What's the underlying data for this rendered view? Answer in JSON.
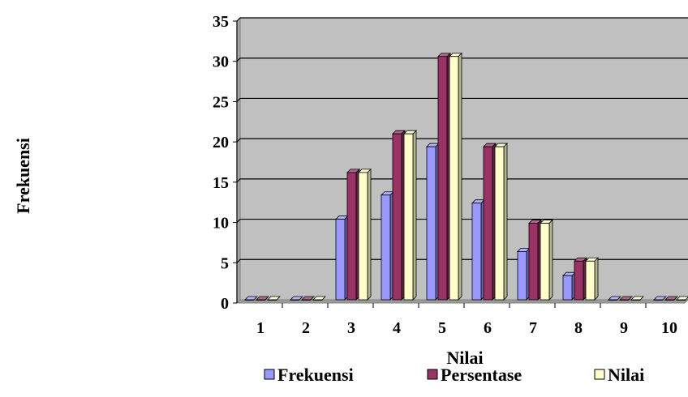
{
  "chart_data": {
    "type": "bar",
    "title": "",
    "xlabel": "Nilai",
    "ylabel": "Frekuensi",
    "categories": [
      "1",
      "2",
      "3",
      "4",
      "5",
      "6",
      "7",
      "8",
      "9",
      "10"
    ],
    "yticks": [
      "0",
      "5",
      "10",
      "15",
      "20",
      "25",
      "30",
      "35"
    ],
    "ylim": [
      0,
      35
    ],
    "grid": true,
    "legend_position": "bottom",
    "plot_background": "#c0c0c0",
    "series": [
      {
        "name": "Frekuensi",
        "color": "#9999ff",
        "values": [
          0,
          0,
          10,
          13,
          19,
          12,
          6,
          3,
          0,
          0
        ]
      },
      {
        "name": "Persentase",
        "color": "#993366",
        "values": [
          0,
          0,
          15.8,
          20.6,
          30.2,
          19.0,
          9.5,
          4.8,
          0,
          0
        ]
      },
      {
        "name": "Nilai",
        "color": "#ffffcc",
        "values": [
          0,
          0,
          15.8,
          20.6,
          30.2,
          19.0,
          9.5,
          4.8,
          0,
          0
        ]
      }
    ]
  }
}
